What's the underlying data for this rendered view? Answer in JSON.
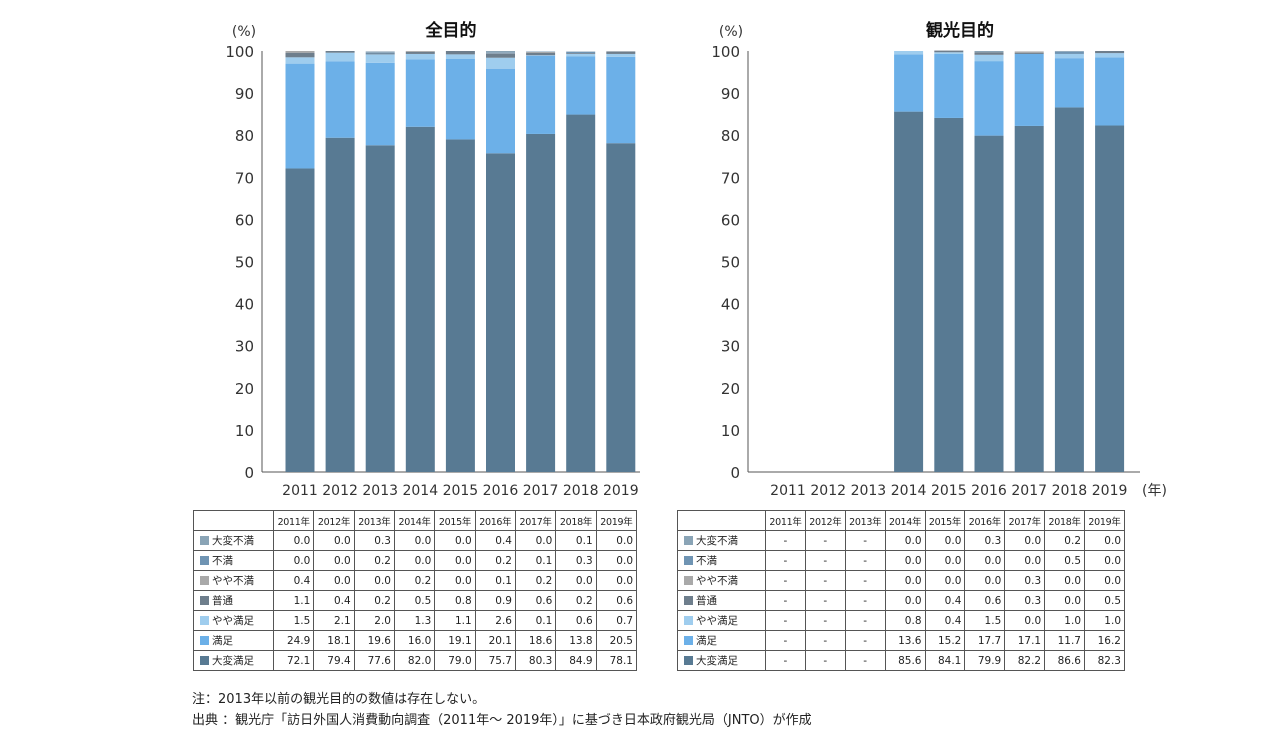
{
  "chart_data": [
    {
      "type": "bar",
      "title": "全目的",
      "y_unit_label": "(%)",
      "x_unit_label": "(年)",
      "ylim": [
        0,
        100
      ],
      "yticks": [
        0,
        10,
        20,
        30,
        40,
        50,
        60,
        70,
        80,
        90,
        100
      ],
      "categories": [
        "2011",
        "2012",
        "2013",
        "2014",
        "2015",
        "2016",
        "2017",
        "2018",
        "2019"
      ],
      "column_headers": [
        "2011年",
        "2012年",
        "2013年",
        "2014年",
        "2015年",
        "2016年",
        "2017年",
        "2018年",
        "2019年"
      ],
      "series": [
        {
          "name": "大変不満",
          "color": "#8aa4b6",
          "values": [
            0.0,
            0.0,
            0.3,
            0.0,
            0.0,
            0.4,
            0.0,
            0.1,
            0.0
          ]
        },
        {
          "name": "不満",
          "color": "#6f94b3",
          "values": [
            0.0,
            0.0,
            0.2,
            0.0,
            0.0,
            0.2,
            0.1,
            0.3,
            0.0
          ]
        },
        {
          "name": "やや不満",
          "color": "#a9a9a9",
          "values": [
            0.4,
            0.0,
            0.0,
            0.2,
            0.0,
            0.1,
            0.2,
            0.0,
            0.0
          ]
        },
        {
          "name": "普通",
          "color": "#6e7e8c",
          "values": [
            1.1,
            0.4,
            0.2,
            0.5,
            0.8,
            0.9,
            0.6,
            0.2,
            0.6
          ]
        },
        {
          "name": "やや満足",
          "color": "#9fcdee",
          "values": [
            1.5,
            2.1,
            2.0,
            1.3,
            1.1,
            2.6,
            0.1,
            0.6,
            0.7
          ]
        },
        {
          "name": "満足",
          "color": "#6cb0e8",
          "values": [
            24.9,
            18.1,
            19.6,
            16.0,
            19.1,
            20.1,
            18.6,
            13.8,
            20.5
          ]
        },
        {
          "name": "大変満足",
          "color": "#587a93",
          "values": [
            72.1,
            79.4,
            77.6,
            82.0,
            79.0,
            75.7,
            80.3,
            84.9,
            78.1
          ]
        }
      ]
    },
    {
      "type": "bar",
      "title": "観光目的",
      "y_unit_label": "(%)",
      "x_unit_label": "(年)",
      "ylim": [
        0,
        100
      ],
      "yticks": [
        0,
        10,
        20,
        30,
        40,
        50,
        60,
        70,
        80,
        90,
        100
      ],
      "categories": [
        "2011",
        "2012",
        "2013",
        "2014",
        "2015",
        "2016",
        "2017",
        "2018",
        "2019"
      ],
      "column_headers": [
        "2011年",
        "2012年",
        "2013年",
        "2014年",
        "2015年",
        "2016年",
        "2017年",
        "2018年",
        "2019年"
      ],
      "series": [
        {
          "name": "大変不満",
          "color": "#8aa4b6",
          "values": [
            null,
            null,
            null,
            0.0,
            0.0,
            0.3,
            0.0,
            0.2,
            0.0
          ]
        },
        {
          "name": "不満",
          "color": "#6f94b3",
          "values": [
            null,
            null,
            null,
            0.0,
            0.0,
            0.0,
            0.0,
            0.5,
            0.0
          ]
        },
        {
          "name": "やや不満",
          "color": "#a9a9a9",
          "values": [
            null,
            null,
            null,
            0.0,
            0.0,
            0.0,
            0.3,
            0.0,
            0.0
          ]
        },
        {
          "name": "普通",
          "color": "#6e7e8c",
          "values": [
            null,
            null,
            null,
            0.0,
            0.4,
            0.6,
            0.3,
            0.0,
            0.5
          ]
        },
        {
          "name": "やや満足",
          "color": "#9fcdee",
          "values": [
            null,
            null,
            null,
            0.8,
            0.4,
            1.5,
            0.0,
            1.0,
            1.0
          ]
        },
        {
          "name": "満足",
          "color": "#6cb0e8",
          "values": [
            null,
            null,
            null,
            13.6,
            15.2,
            17.7,
            17.1,
            11.7,
            16.2
          ]
        },
        {
          "name": "大変満足",
          "color": "#587a93",
          "values": [
            null,
            null,
            null,
            85.6,
            84.1,
            79.9,
            82.2,
            86.6,
            82.3
          ]
        }
      ]
    }
  ],
  "missing_marker": "-",
  "notes": {
    "note": "注：2013年以前の観光目的の数値は存在しない。",
    "source": "出典 ：観光庁「訪日外国人消費動向調査（2011年～ 2019年）」に基づき日本政府観光局（JNTO）が作成"
  }
}
